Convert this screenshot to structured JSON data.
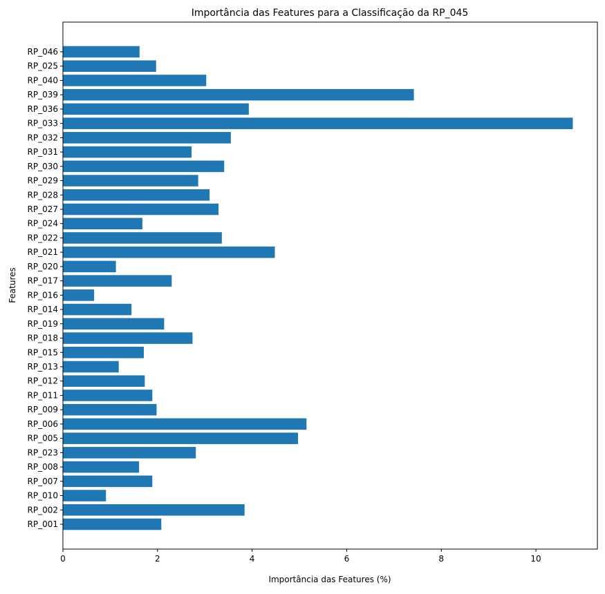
{
  "chart_data": {
    "type": "bar",
    "orientation": "horizontal",
    "title": "Importância das Features para a Classificação da RP_045",
    "xlabel": "Importância das Features (%)",
    "ylabel": "Features",
    "xlim": [
      0,
      11.3
    ],
    "xticks": [
      0,
      2,
      4,
      6,
      8,
      10
    ],
    "xtick_labels": [
      "0",
      "2",
      "4",
      "6",
      "8",
      "10"
    ],
    "grid": false,
    "legend": "none",
    "bar_color": "#1f77b4",
    "categories": [
      "RP_001",
      "RP_002",
      "RP_010",
      "RP_007",
      "RP_008",
      "RP_023",
      "RP_005",
      "RP_006",
      "RP_009",
      "RP_011",
      "RP_012",
      "RP_013",
      "RP_015",
      "RP_018",
      "RP_019",
      "RP_014",
      "RP_016",
      "RP_017",
      "RP_020",
      "RP_021",
      "RP_022",
      "RP_024",
      "RP_027",
      "RP_028",
      "RP_029",
      "RP_030",
      "RP_031",
      "RP_032",
      "RP_033",
      "RP_036",
      "RP_039",
      "RP_040",
      "RP_025",
      "RP_046"
    ],
    "values": [
      2.08,
      3.84,
      0.91,
      1.89,
      1.61,
      2.81,
      4.97,
      5.15,
      1.98,
      1.89,
      1.73,
      1.18,
      1.71,
      2.74,
      2.14,
      1.45,
      0.66,
      2.3,
      1.12,
      4.48,
      3.36,
      1.68,
      3.29,
      3.1,
      2.86,
      3.41,
      2.72,
      3.55,
      10.78,
      3.93,
      7.42,
      3.03,
      1.97,
      1.62
    ]
  }
}
